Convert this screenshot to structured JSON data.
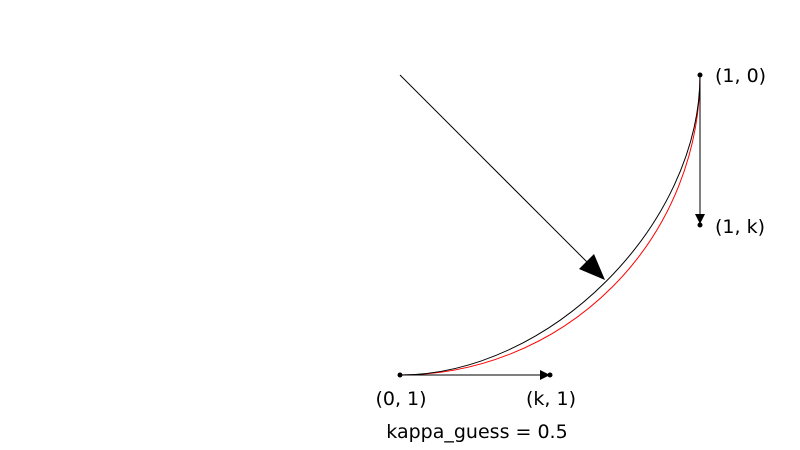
{
  "labels": {
    "p0": "(0, 1)",
    "p1": "(1, 0)",
    "handle_end": "(1, k)",
    "handle_start": "(k, 1)",
    "caption": "kappa_guess = 0.5"
  },
  "colors": {
    "background": "#ffffff",
    "bezier_curve": "#000000",
    "reference_circle": "#ff0000",
    "handles": "#000000",
    "pointer_arrow": "#000000"
  }
}
